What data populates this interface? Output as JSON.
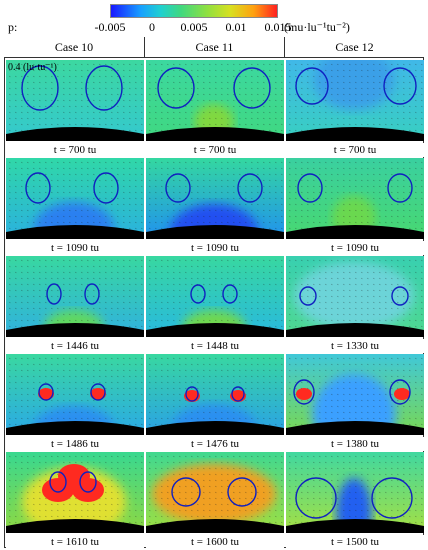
{
  "colorbar": {
    "label": "p:",
    "ticks": [
      "-0.005",
      "0",
      "0.005",
      "0.01",
      "0.015"
    ],
    "unit": "(mu·lu⁻¹tu⁻²)",
    "colors": [
      "#1818ff",
      "#18a0ff",
      "#20d0d0",
      "#40d880",
      "#90e040",
      "#d8e020",
      "#ffa010",
      "#ff2020"
    ]
  },
  "vector_scale": "0.4 (lu·tu⁻¹)",
  "columns": [
    "Case 10",
    "Case 11",
    "Case 12"
  ],
  "rows": [
    {
      "times": [
        "t = 700 tu",
        "t = 700 tu",
        "t = 700 tu"
      ]
    },
    {
      "times": [
        "t = 1090 tu",
        "t = 1090 tu",
        "t = 1090 tu"
      ]
    },
    {
      "times": [
        "t = 1446 tu",
        "t = 1448 tu",
        "t = 1330 tu"
      ]
    },
    {
      "times": [
        "t = 1486 tu",
        "t = 1476 tu",
        "t = 1380 tu"
      ]
    },
    {
      "times": [
        "t = 1610 tu",
        "t = 1600 tu",
        "t = 1500 tu"
      ]
    }
  ]
}
